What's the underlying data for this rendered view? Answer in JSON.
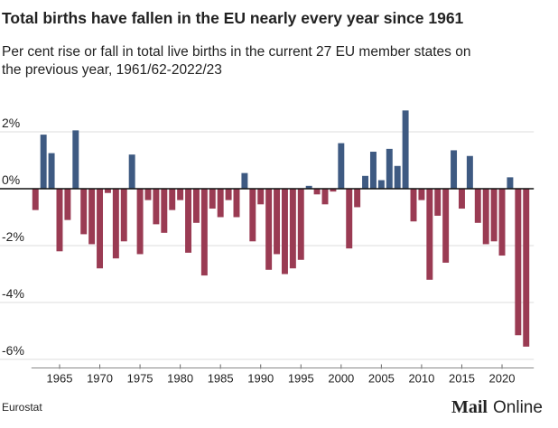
{
  "chart_data": {
    "type": "bar",
    "title": "Total births have fallen in the EU nearly every year since 1961",
    "subtitle": [
      "Per cent rise or fall in total live births in the current 27 EU member states on",
      "the previous year, 1961/62-2022/23"
    ],
    "x": [
      1962,
      1963,
      1964,
      1965,
      1966,
      1967,
      1968,
      1969,
      1970,
      1971,
      1972,
      1973,
      1974,
      1975,
      1976,
      1977,
      1978,
      1979,
      1980,
      1981,
      1982,
      1983,
      1984,
      1985,
      1986,
      1987,
      1988,
      1989,
      1990,
      1991,
      1992,
      1993,
      1994,
      1995,
      1996,
      1997,
      1998,
      1999,
      2000,
      2001,
      2002,
      2003,
      2004,
      2005,
      2006,
      2007,
      2008,
      2009,
      2010,
      2011,
      2012,
      2013,
      2014,
      2015,
      2016,
      2017,
      2018,
      2019,
      2020,
      2021,
      2022,
      2023
    ],
    "values": [
      -0.75,
      1.9,
      1.25,
      -2.2,
      -1.1,
      2.05,
      -1.6,
      -1.95,
      -2.8,
      -0.15,
      -2.45,
      -1.85,
      1.2,
      -2.3,
      -0.4,
      -1.25,
      -1.55,
      -0.75,
      -0.4,
      -2.25,
      -1.2,
      -3.05,
      -0.7,
      -1.0,
      -0.4,
      -1.0,
      0.55,
      -1.85,
      -0.55,
      -2.85,
      -2.3,
      -3.0,
      -2.8,
      -2.5,
      0.1,
      -0.2,
      -0.55,
      -0.1,
      1.6,
      -2.1,
      -0.65,
      0.45,
      1.3,
      0.3,
      1.4,
      0.8,
      2.75,
      -1.15,
      -0.4,
      -3.2,
      -0.95,
      -2.6,
      1.35,
      -0.7,
      1.15,
      -1.2,
      -1.95,
      -1.85,
      -2.35,
      0.4,
      -5.15,
      -5.55
    ],
    "positive_color": "#3e5a82",
    "negative_color": "#9a3b53",
    "xlim": [
      1961.5,
      2023.5
    ],
    "xticks": [
      1965,
      1970,
      1975,
      1980,
      1985,
      1990,
      1995,
      2000,
      2005,
      2010,
      2015,
      2020
    ],
    "ylim": [
      -6.3,
      2.9
    ],
    "yticks": [
      {
        "value": 2,
        "label": "2%"
      },
      {
        "value": 0,
        "label": "0%"
      },
      {
        "value": -2,
        "label": "-2%"
      },
      {
        "value": -4,
        "label": "-4%"
      },
      {
        "value": -6,
        "label": "-6%"
      }
    ],
    "grid": true,
    "source": "Eurostat",
    "logo": [
      "Mail",
      "Online"
    ]
  }
}
